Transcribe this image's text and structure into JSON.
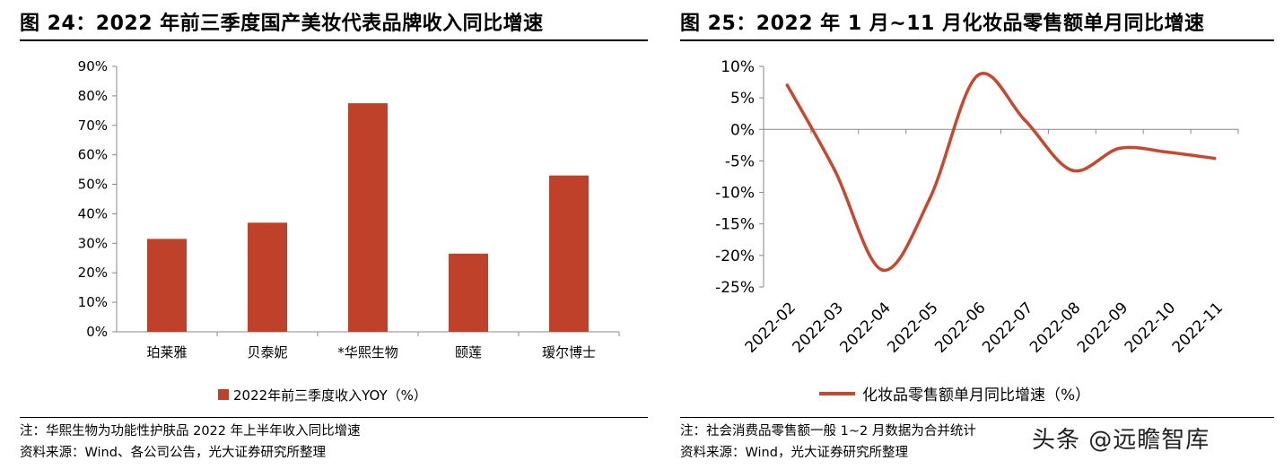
{
  "left_panel": {
    "title": "图 24：2022 年前三季度国产美妆代表品牌收入同比增速",
    "note": "注：华熙生物为功能性护肤品 2022 年上半年收入同比增速",
    "source": "资料来源：Wind、各公司公告，光大证券研究所整理"
  },
  "right_panel": {
    "title": "图 25：2022 年 1 月~11 月化妆品零售额单月同比增速",
    "note": "注：社会消费品零售额一般 1~2 月数据为合并统计",
    "source": "资料来源：Wind，光大证券研究所整理"
  },
  "watermark": "头条 @远瞻智库",
  "chart_data": [
    {
      "type": "bar",
      "categories": [
        "珀莱雅",
        "贝泰妮",
        "*华熙生物",
        "颐莲",
        "瑷尔博士"
      ],
      "series": [
        {
          "name": "2022年前三季度收入YOY（%）",
          "values": [
            31.5,
            37,
            77.5,
            26.5,
            53
          ],
          "color": "#C0412A"
        }
      ],
      "ylim": [
        0,
        90
      ],
      "yticks": [
        0,
        10,
        20,
        30,
        40,
        50,
        60,
        70,
        80,
        90
      ],
      "ytick_labels": [
        "0%",
        "10%",
        "20%",
        "30%",
        "40%",
        "50%",
        "60%",
        "70%",
        "80%",
        "90%"
      ],
      "legend": "bottom",
      "grid": false
    },
    {
      "type": "line",
      "x": [
        "2022-02",
        "2022-03",
        "2022-04",
        "2022-05",
        "2022-06",
        "2022-07",
        "2022-08",
        "2022-09",
        "2022-10",
        "2022-11"
      ],
      "series": [
        {
          "name": "化妆品零售额单月同比增速（%）",
          "values": [
            7,
            -6.5,
            -22.3,
            -11,
            8.5,
            1.5,
            -6.5,
            -3,
            -3.6,
            -4.6
          ],
          "color": "#C9472D"
        }
      ],
      "ylim": [
        -25,
        10
      ],
      "yticks": [
        -25,
        -20,
        -15,
        -10,
        -5,
        0,
        5,
        10
      ],
      "ytick_labels": [
        "-25%",
        "-20%",
        "-15%",
        "-10%",
        "-5%",
        "0%",
        "5%",
        "10%"
      ],
      "legend": "bottom",
      "grid": false
    }
  ]
}
